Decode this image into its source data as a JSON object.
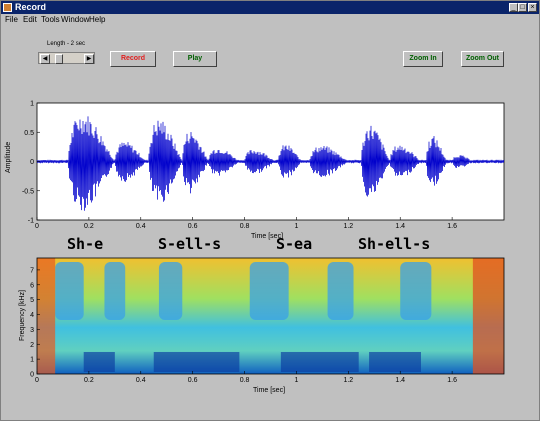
{
  "window": {
    "title": "Record",
    "controls": [
      "_",
      "□",
      "×"
    ]
  },
  "menu": [
    {
      "label": "File"
    },
    {
      "label": "Edit"
    },
    {
      "label": "Tools"
    },
    {
      "label": "Window"
    },
    {
      "label": "Help"
    }
  ],
  "toolbar": {
    "length_label": "Length - 2 sec",
    "record": "Record",
    "play": "Play",
    "zoom_in": "Zoom In",
    "zoom_out": "Zoom Out",
    "record_color": "#e02020",
    "play_color": "#006000",
    "zoom_color": "#006000"
  },
  "waveform": {
    "ylabel": "Amplitude",
    "xlabel": "Time [sec]",
    "x_ticks": [
      "0",
      "0.2",
      "0.4",
      "0.6",
      "0.8",
      "1",
      "1.2",
      "1.4",
      "1.6"
    ],
    "y_ticks": [
      "1",
      "0.5",
      "0",
      "-0.5",
      "-1"
    ],
    "line_color": "#0000cc"
  },
  "spectrogram": {
    "ylabel": "Frequency [kHz]",
    "xlabel": "Time [sec]",
    "x_ticks": [
      "0",
      "0.2",
      "0.4",
      "0.6",
      "0.8",
      "1",
      "1.2",
      "1.4",
      "1.6"
    ],
    "y_ticks": [
      "7",
      "6",
      "5",
      "4",
      "3",
      "2",
      "1",
      "0"
    ]
  },
  "syllables": [
    "Sh-e",
    "S-ell-s",
    "S-ea",
    "Sh-ell-s"
  ]
}
